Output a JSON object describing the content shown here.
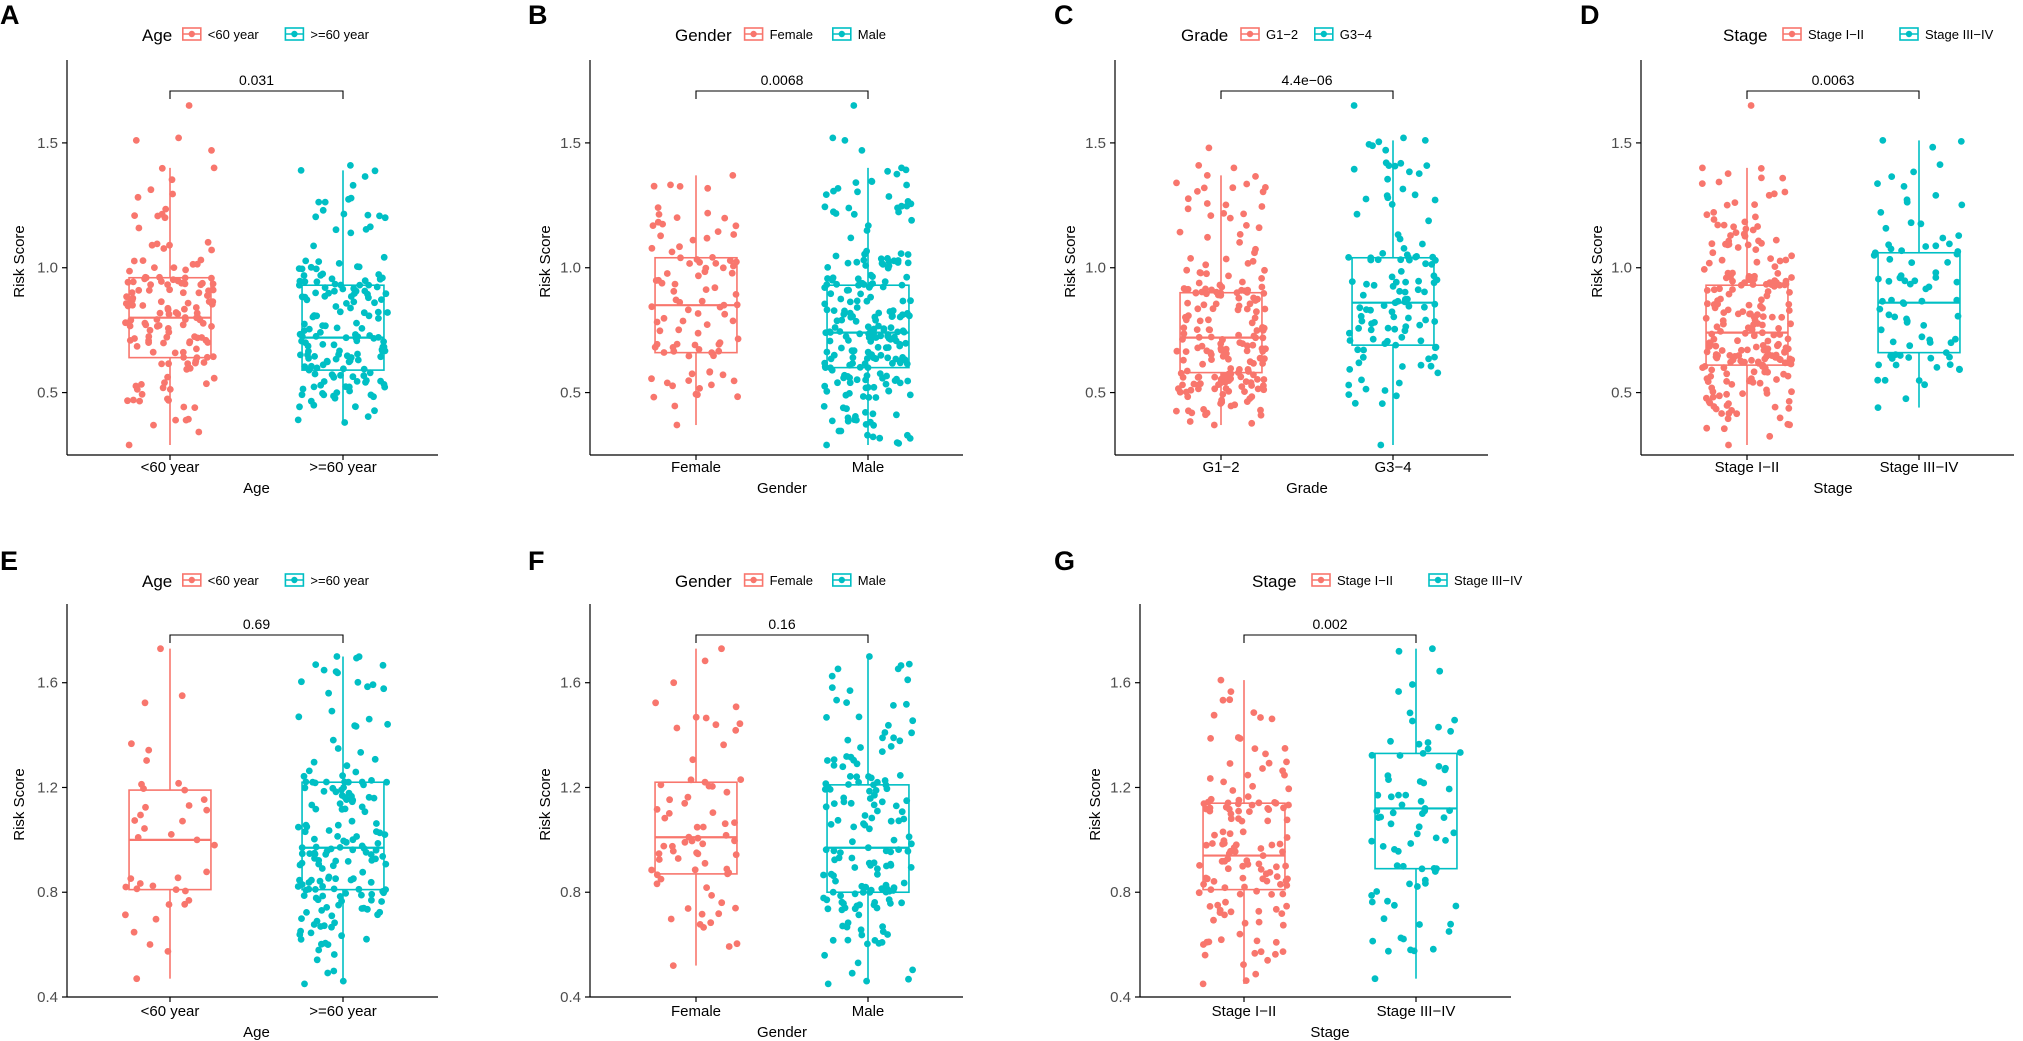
{
  "colors": {
    "group1": "#F8766D",
    "group2": "#00BFC4",
    "axis": "#000000",
    "text": "#4D4D4D"
  },
  "panels": [
    {
      "letter": "A",
      "variable": "Age",
      "xlabel": "Age",
      "ylabel": "Risk Score",
      "categories": [
        "<60 year",
        ">=60 year"
      ],
      "legend": [
        "<60 year",
        ">=60 year"
      ],
      "pvalue": "0.031",
      "ylim": [
        0.25,
        1.8
      ],
      "yticks": [
        0.5,
        1.0,
        1.5
      ],
      "yticklabels": [
        "0.5",
        "1.0",
        "1.5"
      ],
      "boxes": [
        {
          "min": 0.29,
          "q1": 0.64,
          "median": 0.8,
          "q3": 0.96,
          "max": 1.4
        },
        {
          "min": 0.38,
          "q1": 0.59,
          "median": 0.72,
          "q3": 0.93,
          "max": 1.39
        }
      ],
      "n": [
        150,
        170
      ],
      "outliers": [
        [
          1.47,
          1.51,
          1.52,
          1.65
        ],
        [
          1.41
        ]
      ]
    },
    {
      "letter": "B",
      "variable": "Gender",
      "xlabel": "Gender",
      "ylabel": "Risk Score",
      "categories": [
        "Female",
        "Male"
      ],
      "legend": [
        "Female",
        "Male"
      ],
      "pvalue": "0.0068",
      "ylim": [
        0.25,
        1.8
      ],
      "yticks": [
        0.5,
        1.0,
        1.5
      ],
      "yticklabels": [
        "0.5",
        "1.0",
        "1.5"
      ],
      "boxes": [
        {
          "min": 0.37,
          "q1": 0.66,
          "median": 0.85,
          "q3": 1.04,
          "max": 1.37
        },
        {
          "min": 0.29,
          "q1": 0.6,
          "median": 0.74,
          "q3": 0.93,
          "max": 1.4
        }
      ],
      "n": [
        95,
        230
      ],
      "outliers": [
        [],
        [
          1.47,
          1.51,
          1.52,
          1.65
        ]
      ]
    },
    {
      "letter": "C",
      "variable": "Grade",
      "xlabel": "Grade",
      "ylabel": "Risk Score",
      "categories": [
        "G1−2",
        "G3−4"
      ],
      "legend": [
        "G1−2",
        "G3−4"
      ],
      "pvalue": "4.4e−06",
      "ylim": [
        0.25,
        1.8
      ],
      "yticks": [
        0.5,
        1.0,
        1.5
      ],
      "yticklabels": [
        "0.5",
        "1.0",
        "1.5"
      ],
      "boxes": [
        {
          "min": 0.37,
          "q1": 0.58,
          "median": 0.72,
          "q3": 0.9,
          "max": 1.37
        },
        {
          "min": 0.29,
          "q1": 0.69,
          "median": 0.86,
          "q3": 1.04,
          "max": 1.51
        }
      ],
      "n": [
        200,
        120
      ],
      "outliers": [
        [
          1.4,
          1.41,
          1.48
        ],
        [
          1.52,
          1.65
        ]
      ]
    },
    {
      "letter": "D",
      "variable": "Stage",
      "xlabel": "Stage",
      "ylabel": "Risk Score",
      "categories": [
        "Stage I−II",
        "Stage III−IV"
      ],
      "legend": [
        "Stage I−II",
        "Stage III−IV"
      ],
      "pvalue": "0.0063",
      "ylim": [
        0.25,
        1.8
      ],
      "yticks": [
        0.5,
        1.0,
        1.5
      ],
      "yticklabels": [
        "0.5",
        "1.0",
        "1.5"
      ],
      "boxes": [
        {
          "min": 0.29,
          "q1": 0.61,
          "median": 0.74,
          "q3": 0.93,
          "max": 1.4
        },
        {
          "min": 0.44,
          "q1": 0.66,
          "median": 0.86,
          "q3": 1.06,
          "max": 1.51
        }
      ],
      "n": [
        230,
        85
      ],
      "outliers": [
        [
          1.65
        ],
        []
      ]
    },
    {
      "letter": "E",
      "variable": "Age",
      "xlabel": "Age",
      "ylabel": "Risk Score",
      "categories": [
        "<60 year",
        ">=60 year"
      ],
      "legend": [
        "<60 year",
        ">=60 year"
      ],
      "pvalue": "0.69",
      "ylim": [
        0.4,
        1.87
      ],
      "yticks": [
        0.4,
        0.8,
        1.2,
        1.6
      ],
      "yticklabels": [
        "0.4",
        "0.8",
        "1.2",
        "1.6"
      ],
      "boxes": [
        {
          "min": 0.47,
          "q1": 0.81,
          "median": 1.0,
          "q3": 1.19,
          "max": 1.73
        },
        {
          "min": 0.45,
          "q1": 0.81,
          "median": 0.97,
          "q3": 1.22,
          "max": 1.7
        }
      ],
      "n": [
        40,
        175
      ],
      "outliers": [
        [],
        []
      ]
    },
    {
      "letter": "F",
      "variable": "Gender",
      "xlabel": "Gender",
      "ylabel": "Risk Score",
      "categories": [
        "Female",
        "Male"
      ],
      "legend": [
        "Female",
        "Male"
      ],
      "pvalue": "0.16",
      "ylim": [
        0.4,
        1.87
      ],
      "yticks": [
        0.4,
        0.8,
        1.2,
        1.6
      ],
      "yticklabels": [
        "0.4",
        "0.8",
        "1.2",
        "1.6"
      ],
      "boxes": [
        {
          "min": 0.52,
          "q1": 0.87,
          "median": 1.01,
          "q3": 1.22,
          "max": 1.73
        },
        {
          "min": 0.45,
          "q1": 0.8,
          "median": 0.97,
          "q3": 1.21,
          "max": 1.7
        }
      ],
      "n": [
        70,
        160
      ],
      "outliers": [
        [],
        []
      ]
    },
    {
      "letter": "G",
      "variable": "Stage",
      "xlabel": "Stage",
      "ylabel": "Risk Score",
      "categories": [
        "Stage I−II",
        "Stage III−IV"
      ],
      "legend": [
        "Stage I−II",
        "Stage III−IV"
      ],
      "pvalue": "0.002",
      "ylim": [
        0.4,
        1.87
      ],
      "yticks": [
        0.4,
        0.8,
        1.2,
        1.6
      ],
      "yticklabels": [
        "0.4",
        "0.8",
        "1.2",
        "1.6"
      ],
      "boxes": [
        {
          "min": 0.45,
          "q1": 0.81,
          "median": 0.94,
          "q3": 1.14,
          "max": 1.61
        },
        {
          "min": 0.47,
          "q1": 0.89,
          "median": 1.12,
          "q3": 1.33,
          "max": 1.73
        }
      ],
      "n": [
        140,
        80
      ],
      "outliers": [
        [],
        []
      ]
    }
  ],
  "chart_data": [
    {
      "type": "box",
      "panel": "A",
      "title": "",
      "legend_title": "Age",
      "xlabel": "Age",
      "ylabel": "Risk Score",
      "categories": [
        "<60 year",
        ">=60 year"
      ],
      "ylim": [
        0.25,
        1.8
      ],
      "pvalue": "0.031",
      "medians": [
        0.8,
        0.72
      ],
      "q1": [
        0.64,
        0.59
      ],
      "q3": [
        0.96,
        0.93
      ]
    },
    {
      "type": "box",
      "panel": "B",
      "title": "",
      "legend_title": "Gender",
      "xlabel": "Gender",
      "ylabel": "Risk Score",
      "categories": [
        "Female",
        "Male"
      ],
      "ylim": [
        0.25,
        1.8
      ],
      "pvalue": "0.0068",
      "medians": [
        0.85,
        0.74
      ],
      "q1": [
        0.66,
        0.6
      ],
      "q3": [
        1.04,
        0.93
      ]
    },
    {
      "type": "box",
      "panel": "C",
      "title": "",
      "legend_title": "Grade",
      "xlabel": "Grade",
      "ylabel": "Risk Score",
      "categories": [
        "G1−2",
        "G3−4"
      ],
      "ylim": [
        0.25,
        1.8
      ],
      "pvalue": "4.4e−06",
      "medians": [
        0.72,
        0.86
      ],
      "q1": [
        0.58,
        0.69
      ],
      "q3": [
        0.9,
        1.04
      ]
    },
    {
      "type": "box",
      "panel": "D",
      "title": "",
      "legend_title": "Stage",
      "xlabel": "Stage",
      "ylabel": "Risk Score",
      "categories": [
        "Stage I−II",
        "Stage III−IV"
      ],
      "ylim": [
        0.25,
        1.8
      ],
      "pvalue": "0.0063",
      "medians": [
        0.74,
        0.86
      ],
      "q1": [
        0.61,
        0.66
      ],
      "q3": [
        0.93,
        1.06
      ]
    },
    {
      "type": "box",
      "panel": "E",
      "title": "",
      "legend_title": "Age",
      "xlabel": "Age",
      "ylabel": "Risk Score",
      "categories": [
        "<60 year",
        ">=60 year"
      ],
      "ylim": [
        0.4,
        1.87
      ],
      "pvalue": "0.69",
      "medians": [
        1.0,
        0.97
      ],
      "q1": [
        0.81,
        0.81
      ],
      "q3": [
        1.19,
        1.22
      ]
    },
    {
      "type": "box",
      "panel": "F",
      "title": "",
      "legend_title": "Gender",
      "xlabel": "Gender",
      "ylabel": "Risk Score",
      "categories": [
        "Female",
        "Male"
      ],
      "ylim": [
        0.4,
        1.87
      ],
      "pvalue": "0.16",
      "medians": [
        1.01,
        0.97
      ],
      "q1": [
        0.87,
        0.8
      ],
      "q3": [
        1.22,
        1.21
      ]
    },
    {
      "type": "box",
      "panel": "G",
      "title": "",
      "legend_title": "Stage",
      "xlabel": "Stage",
      "ylabel": "Risk Score",
      "categories": [
        "Stage I−II",
        "Stage III−IV"
      ],
      "ylim": [
        0.4,
        1.87
      ],
      "pvalue": "0.002",
      "medians": [
        0.94,
        1.12
      ],
      "q1": [
        0.81,
        0.89
      ],
      "q3": [
        1.14,
        1.33
      ]
    }
  ]
}
